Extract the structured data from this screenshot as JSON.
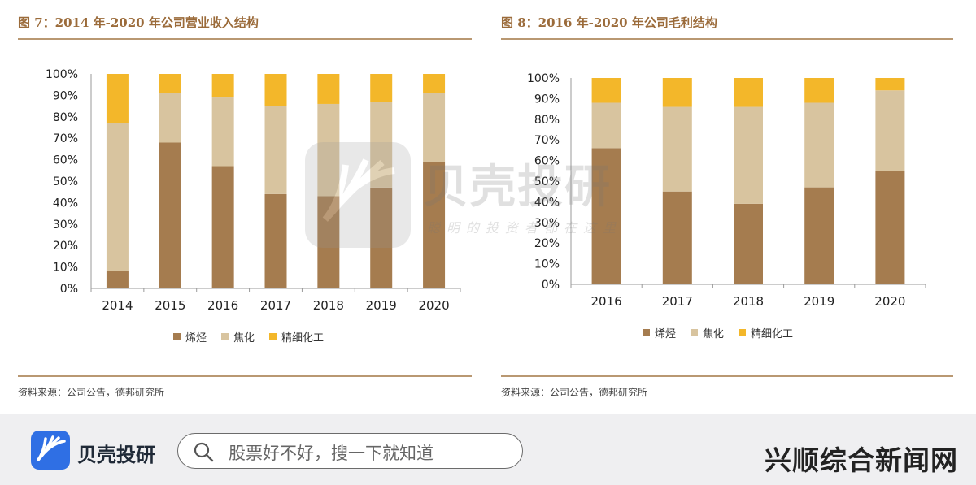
{
  "left_figure": {
    "title": "图 7：2014 年-2020 年公司营业收入结构",
    "source": "资料来源：公司公告，德邦研究所"
  },
  "right_figure": {
    "title": "图 8：2016 年-2020 年公司毛利结构",
    "source": "资料来源：公司公告，德邦研究所"
  },
  "colors": {
    "olefin": "#a57c4f",
    "coking": "#d8c49f",
    "fine_chem": "#f3b72a",
    "axis": "#9a9a9a"
  },
  "chart_data": [
    {
      "type": "bar",
      "stacked": true,
      "title": "图 7：2014 年-2020 年公司营业收入结构",
      "categories": [
        "2014",
        "2015",
        "2016",
        "2017",
        "2018",
        "2019",
        "2020"
      ],
      "series": [
        {
          "name": "烯烃",
          "values": [
            8,
            68,
            57,
            44,
            43,
            47,
            59
          ]
        },
        {
          "name": "焦化",
          "values": [
            69,
            23,
            32,
            41,
            43,
            40,
            32
          ]
        },
        {
          "name": "精细化工",
          "values": [
            23,
            9,
            11,
            15,
            14,
            13,
            9
          ]
        }
      ],
      "yticks": [
        "0%",
        "10%",
        "20%",
        "30%",
        "40%",
        "50%",
        "60%",
        "70%",
        "80%",
        "90%",
        "100%"
      ],
      "ylim": [
        0,
        100
      ],
      "legend": "bottom"
    },
    {
      "type": "bar",
      "stacked": true,
      "title": "图 8：2016 年-2020 年公司毛利结构",
      "categories": [
        "2016",
        "2017",
        "2018",
        "2019",
        "2020"
      ],
      "series": [
        {
          "name": "烯烃",
          "values": [
            66,
            45,
            39,
            47,
            55
          ]
        },
        {
          "name": "焦化",
          "values": [
            22,
            41,
            47,
            41,
            39
          ]
        },
        {
          "name": "精细化工",
          "values": [
            12,
            14,
            14,
            12,
            6
          ]
        }
      ],
      "yticks": [
        "0%",
        "10%",
        "20%",
        "30%",
        "40%",
        "50%",
        "60%",
        "70%",
        "80%",
        "90%",
        "100%"
      ],
      "ylim": [
        0,
        100
      ],
      "legend": "bottom"
    }
  ],
  "legend_labels": [
    "烯烃",
    "焦化",
    "精细化工"
  ],
  "watermark": {
    "brand": "贝壳投研",
    "slogan": "聪明的投资者都在这里"
  },
  "footer": {
    "app_name": "贝壳投研",
    "search_placeholder": "股票好不好，搜一下就知道",
    "site_name": "兴顺综合新闻网"
  }
}
